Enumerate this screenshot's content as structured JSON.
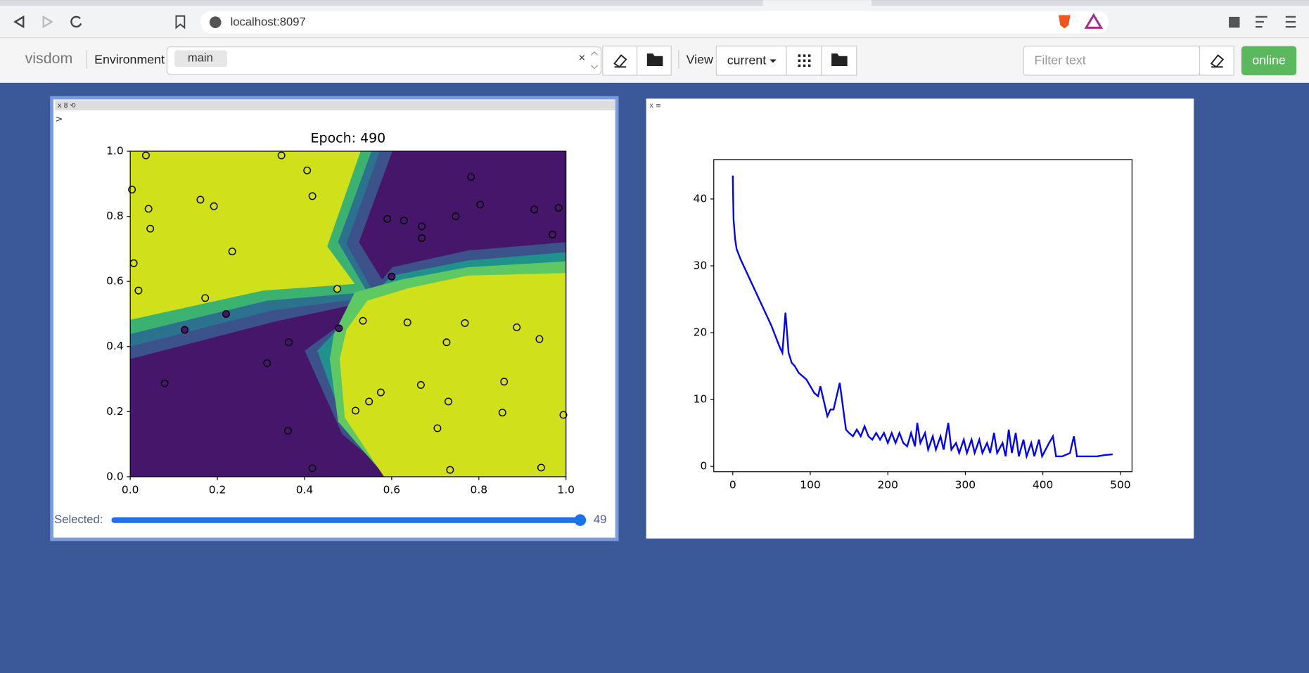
{
  "browser": {
    "url": "localhost:8097"
  },
  "toolbar": {
    "brand": "visdom",
    "environment_label": "Environment",
    "environment": "main",
    "clear": "×",
    "view_label": "View",
    "view": "current",
    "filter_placeholder": "Filter text",
    "status": "online"
  },
  "panes": [
    {
      "controls": "x 8 ⟲",
      "prompt": ">",
      "slider": {
        "label": "Selected:",
        "value": 49
      }
    },
    {
      "controls": "x ≡"
    }
  ],
  "chart_data": [
    {
      "type": "scatter",
      "title": "Epoch: 490",
      "xlim": [
        0,
        1
      ],
      "ylim": [
        0,
        1
      ],
      "xticks": [
        {
          "value": 0,
          "label": "0.0"
        },
        {
          "value": 0.2,
          "label": "0.2"
        },
        {
          "value": 0.4,
          "label": "0.4"
        },
        {
          "value": 0.6,
          "label": "0.6"
        },
        {
          "value": 0.8,
          "label": "0.8"
        },
        {
          "value": 1,
          "label": "1.0"
        }
      ],
      "yticks": [
        {
          "value": 0,
          "label": "0.0"
        },
        {
          "value": 0.2,
          "label": "0.2"
        },
        {
          "value": 0.4,
          "label": "0.4"
        },
        {
          "value": 0.6,
          "label": "0.6"
        },
        {
          "value": 0.8,
          "label": "0.8"
        },
        {
          "value": 1,
          "label": "1.0"
        }
      ],
      "series": [
        {
          "color": "#d4e21a",
          "x": [
            0.036,
            0.004,
            0.042,
            0.046,
            0.161,
            0.192,
            0.008,
            0.019,
            0.234,
            0.347,
            0.406,
            0.418,
            0.172,
            0.475,
            0.534,
            0.636,
            0.768,
            0.887,
            0.939,
            0.726,
            0.667,
            0.575,
            0.548,
            0.517,
            0.73,
            0.858,
            0.854,
            0.994,
            0.705,
            0.943,
            0.734
          ],
          "values": [
            0.987,
            0.882,
            0.823,
            0.762,
            0.851,
            0.831,
            0.656,
            0.572,
            0.692,
            0.987,
            0.941,
            0.862,
            0.549,
            0.577,
            0.479,
            0.474,
            0.472,
            0.459,
            0.423,
            0.413,
            0.282,
            0.259,
            0.231,
            0.203,
            0.231,
            0.292,
            0.197,
            0.19,
            0.149,
            0.028,
            0.021
          ]
        },
        {
          "color": "#46166b",
          "x": [
            0.782,
            0.803,
            0.59,
            0.628,
            0.669,
            0.669,
            0.747,
            0.927,
            0.983,
            0.969,
            0.6,
            0.22,
            0.125,
            0.479,
            0.364,
            0.314,
            0.079,
            0.362,
            0.418
          ],
          "values": [
            0.921,
            0.836,
            0.792,
            0.787,
            0.769,
            0.733,
            0.8,
            0.821,
            0.826,
            0.744,
            0.615,
            0.5,
            0.451,
            0.456,
            0.413,
            0.349,
            0.287,
            0.141,
            0.026
          ]
        }
      ]
    },
    {
      "type": "line",
      "xlim": [
        -24.5,
        515
      ],
      "ylim": [
        -0.8,
        45.9
      ],
      "xticks": [
        0,
        100,
        200,
        300,
        400,
        500
      ],
      "yticks": [
        0,
        10,
        20,
        30,
        40
      ],
      "series": [
        {
          "color": "#0000ff",
          "x": [
            0,
            1,
            3,
            5,
            10,
            20,
            30,
            40,
            50,
            60,
            64,
            68,
            72,
            76,
            80,
            85,
            90,
            95,
            100,
            105,
            110,
            113,
            118,
            122,
            126,
            130,
            135,
            138,
            142,
            146,
            150,
            155,
            160,
            165,
            170,
            175,
            180,
            185,
            190,
            195,
            200,
            205,
            210,
            215,
            220,
            225,
            230,
            235,
            238,
            242,
            248,
            252,
            258,
            262,
            268,
            272,
            278,
            282,
            288,
            292,
            298,
            302,
            308,
            312,
            318,
            322,
            328,
            332,
            337,
            341,
            348,
            352,
            356,
            360,
            365,
            369,
            375,
            379,
            385,
            389,
            395,
            399,
            408,
            413,
            417,
            425,
            435,
            440,
            444,
            455,
            470,
            480,
            490
          ],
          "values": [
            43.5,
            37,
            34,
            32.5,
            31,
            28.5,
            26,
            23.5,
            21,
            18,
            17,
            23,
            17,
            15.5,
            15,
            14,
            13.5,
            13,
            12,
            11,
            10.5,
            12,
            9.5,
            7.5,
            8.5,
            8.5,
            11,
            12.5,
            9,
            5.5,
            5,
            4.5,
            5.5,
            4.5,
            6,
            4.5,
            4,
            5,
            4,
            5,
            3.5,
            5,
            3.5,
            5,
            3.5,
            3,
            5,
            3,
            6.5,
            3.5,
            5,
            2.5,
            4.5,
            2.5,
            4.5,
            2.5,
            6.5,
            2.5,
            3.5,
            2,
            4,
            2,
            4,
            2,
            4,
            2,
            3.5,
            2,
            5,
            2,
            3.5,
            1.5,
            5.5,
            2,
            5,
            1.5,
            4,
            1.5,
            3.5,
            1.5,
            4,
            1.5,
            3.5,
            4.5,
            1.5,
            1.5,
            2,
            4.5,
            1.5,
            1.5,
            1.5,
            1.7,
            1.8
          ]
        }
      ]
    }
  ]
}
